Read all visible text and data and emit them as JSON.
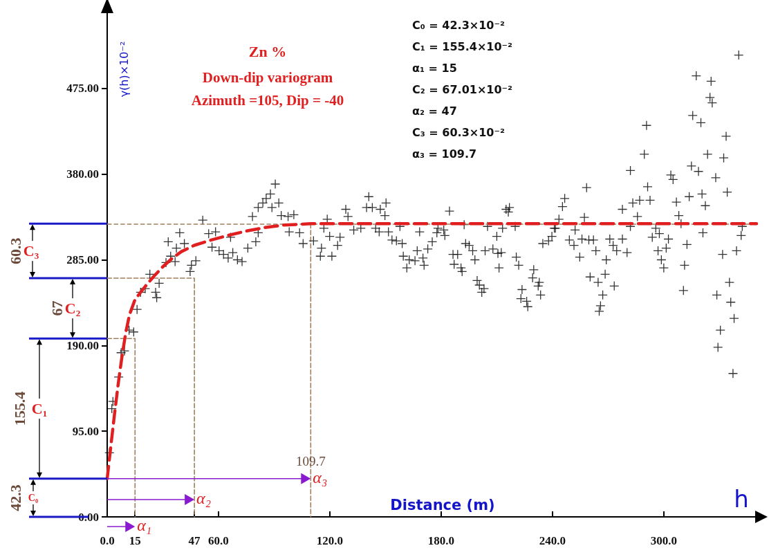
{
  "chart_data": {
    "type": "scatter",
    "title": "Zn %",
    "subtitle": "Down-dip variogram\nAzimuth =105, Dip = -40",
    "xlabel": "Distance (m)",
    "ylabel": "γ(h)×10⁻²",
    "xlim": [
      0,
      350
    ],
    "ylim": [
      0,
      560
    ],
    "xticks": [
      {
        "value": 0,
        "label": "0.0"
      },
      15,
      47,
      {
        "value": 60,
        "label": "60.0"
      },
      {
        "value": 120,
        "label": "120.0"
      },
      {
        "value": 180,
        "label": "180.0"
      },
      {
        "value": 240,
        "label": "240.0"
      },
      {
        "value": 300,
        "label": "300.0"
      }
    ],
    "yticks": [
      {
        "value": 0,
        "label": "0.00"
      },
      {
        "value": 95,
        "label": "95.00"
      },
      {
        "value": 190,
        "label": "190.00"
      },
      {
        "value": 285,
        "label": "285.00"
      },
      {
        "value": 380,
        "label": "380.00"
      },
      {
        "value": 475,
        "label": "475.00"
      }
    ],
    "marker": "cross",
    "series": [
      {
        "color": "#000000",
        "x": [
          1.2,
          2.5,
          3.1,
          6.2,
          7.5,
          9.3,
          11.8,
          14.3,
          16.1,
          18,
          20.5,
          23,
          26.1,
          26.7,
          28,
          31.7,
          32.9,
          34.2,
          36.6,
          37.3,
          39.1,
          41.6,
          44.7,
          45.4,
          47.8,
          51.5,
          54.7,
          56.5,
          58.4,
          60.3,
          62.7,
          65.2,
          66.5,
          67.7,
          70.2,
          72.7,
          75.8,
          78.3,
          80.1,
          81.4,
          81.4,
          83.9,
          85.7,
          88,
          88.8,
          90.6,
          92.5,
          93.8,
          97.5,
          98.1,
          100.6,
          103.7,
          105.6,
          111.2,
          114.9,
          115.5,
          116.8,
          118.6,
          119.9,
          121.1,
          124.2,
          125.5,
          128.6,
          129.8,
          132.9,
          136.7,
          139.8,
          141,
          142.9,
          144.7,
          146.6,
          147.2,
          149.7,
          150.3,
          151.6,
          153.5,
          155.9,
          157.8,
          159,
          159.6,
          161.5,
          162.8,
          165.9,
          167.1,
          168.4,
          170.2,
          170.8,
          172.8,
          175.2,
          177.7,
          178.3,
          181.4,
          182,
          184.5,
          186.4,
          187,
          188.9,
          190.7,
          191.3,
          192.4,
          193.2,
          195.1,
          197,
          198.2,
          199.4,
          200.6,
          201.9,
          203.1,
          203.7,
          205,
          207.9,
          210,
          210.6,
          211.2,
          212.4,
          213.1,
          215,
          216.2,
          216.8,
          219.9,
          220.5,
          221.8,
          223,
          223.6,
          226.1,
          226.7,
          229.3,
          229.9,
          232.3,
          232.9,
          233.6,
          234.8,
          237.9,
          239.7,
          241,
          241.6,
          243.5,
          245.4,
          246.6,
          249.1,
          251.6,
          252.2,
          254.7,
          255.9,
          257.2,
          258.4,
          259.6,
          260.3,
          262.1,
          263.4,
          264.6,
          265.2,
          265.9,
          267.1,
          268.4,
          269,
          270.9,
          272.7,
          273.3,
          274.6,
          277.7,
          277.7,
          280.2,
          282,
          282,
          283.3,
          285.8,
          287,
          289.5,
          290.7,
          291.3,
          292.6,
          293.8,
          295.7,
          296.9,
          297.6,
          298.7,
          300,
          301.3,
          302.5,
          303.8,
          305,
          306.8,
          308.1,
          309.3,
          310.6,
          311.2,
          312.5,
          313.7,
          314.9,
          315.6,
          317.5,
          318.7,
          320,
          320.6,
          321.1,
          322.4,
          323.6,
          324.9,
          325.5,
          326.1,
          328,
          328.6,
          329.2,
          330.5,
          331.7,
          332.3,
          333.6,
          334.2,
          335.4,
          336.1,
          337.3,
          337.9,
          339.2,
          340.4,
          341.7,
          342.3
        ],
        "values": [
          71,
          120,
          128,
          155,
          182,
          184,
          207,
          205,
          230,
          249,
          253,
          269,
          249,
          243,
          259,
          282,
          305,
          289,
          283,
          298,
          315,
          303,
          272,
          279,
          284,
          329,
          314,
          299,
          316,
          295,
          291,
          287,
          310,
          293,
          285,
          283,
          298,
          333,
          305,
          315,
          343,
          348,
          353,
          358,
          343,
          369,
          348,
          334,
          333,
          316,
          335,
          315,
          303,
          306,
          289,
          298,
          320,
          330,
          311,
          289,
          301,
          310,
          341,
          333,
          318,
          320,
          343,
          355,
          343,
          320,
          316,
          341,
          334,
          348,
          316,
          307,
          306,
          322,
          303,
          289,
          276,
          285,
          284,
          295,
          316,
          287,
          279,
          297,
          305,
          315,
          320,
          318,
          312,
          339,
          291,
          280,
          291,
          276,
          272,
          324,
          303,
          301,
          295,
          285,
          262,
          257,
          249,
          253,
          295,
          322,
          297,
          311,
          292,
          276,
          293,
          320,
          341,
          338,
          343,
          322,
          288,
          279,
          242,
          252,
          239,
          233,
          265,
          274,
          256,
          260,
          246,
          303,
          306,
          311,
          320,
          320,
          330,
          344,
          353,
          307,
          301,
          318,
          288,
          308,
          332,
          365,
          307,
          266,
          307,
          295,
          260,
          228,
          234,
          246,
          269,
          285,
          308,
          301,
          256,
          295,
          308,
          341,
          293,
          384,
          322,
          348,
          333,
          351,
          402,
          434,
          366,
          351,
          310,
          320,
          295,
          314,
          285,
          276,
          298,
          308,
          379,
          374,
          349,
          334,
          325,
          251,
          279,
          302,
          355,
          389,
          445,
          489,
          383,
          437,
          358,
          315,
          345,
          402,
          465,
          483,
          459,
          376,
          246,
          188,
          207,
          291,
          398,
          422,
          360,
          260,
          238,
          159,
          220,
          295,
          512,
          312,
          322
        ]
      },
      {
        "type": "line",
        "color": "#e02020",
        "line_style": "dashed",
        "marker": "none",
        "x": [
          0,
          2,
          4,
          6,
          8,
          10,
          12,
          15,
          20,
          25,
          30,
          35,
          40,
          47,
          55,
          65,
          75,
          85,
          95,
          109.7,
          350
        ],
        "values": [
          42.3,
          79.1,
          114.8,
          148.3,
          178.3,
          204,
          224,
          241,
          254.2,
          266.4,
          277.3,
          286.6,
          294.1,
          301.1,
          306.3,
          312,
          316.9,
          320.8,
          323.5,
          325,
          325
        ]
      },
      {
        "type": "line",
        "color": "#a08060",
        "line_style": "dashed",
        "marker": "none",
        "x": [
          0,
          15,
          15
        ],
        "values": [
          197.7,
          197.7,
          0
        ]
      },
      {
        "type": "line",
        "color": "#a08060",
        "line_style": "dashed",
        "marker": "none",
        "x": [
          0,
          47,
          47
        ],
        "values": [
          264.7,
          264.7,
          0
        ]
      },
      {
        "type": "line",
        "color": "#a08060",
        "line_style": "dashed",
        "marker": "none",
        "x": [
          109.7,
          109.7
        ],
        "values": [
          325,
          0
        ]
      }
    ],
    "ref_lines": [
      {
        "axis": "y",
        "value": 325,
        "color": "#a08060",
        "line_style": "dashed"
      }
    ],
    "annotations": [
      "C₀ = 42.3×10⁻²",
      "C₁ = 155.4×10⁻²",
      "α₁ = 15",
      "C₂ = 67.01×10⁻²",
      "α₂ = 47",
      "C₃ = 60.3×10⁻²",
      "α₃ = 109.7",
      "42.3",
      "155.4",
      "67",
      "60.3",
      "C₀",
      "C₁",
      "C₂",
      "C₃",
      "h",
      "α₁",
      "α₂",
      {
        "text": "α₃",
        "x": 109.7,
        "y": 42.3
      },
      {
        "text": "109.7",
        "x": 109.7,
        "y": 62
      }
    ]
  }
}
